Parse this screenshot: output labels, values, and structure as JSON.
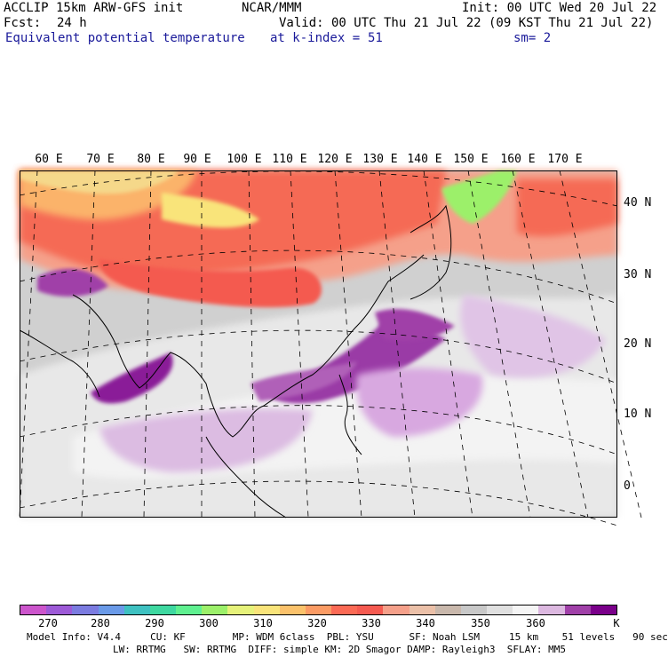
{
  "header": {
    "model": "ACCLIP 15km ARW-GFS init",
    "org": "NCAR/MMM",
    "init": "Init: 00 UTC Wed 20 Jul 22",
    "fcst_label": "Fcst:",
    "fcst_value": "24 h",
    "valid": "Valid: 00 UTC Thu 21 Jul 22 (09 KST Thu 21 Jul 22)",
    "field": "Equivalent potential temperature",
    "level": "at k-index =",
    "level_value": "51",
    "smooth": "sm= 2"
  },
  "map": {
    "lon_labels": [
      "60 E",
      "70 E",
      "80 E",
      "90 E",
      "100 E",
      "110 E",
      "120 E",
      "130 E",
      "140 E",
      "150 E",
      "160 E",
      "170 E"
    ],
    "lat_labels": [
      "40 N",
      "30 N",
      "20 N",
      "10 N",
      "0"
    ]
  },
  "colorbar": {
    "colors": [
      "#cc55cc",
      "#9d5ad7",
      "#7b7be0",
      "#6a9ae8",
      "#3ec1c1",
      "#3ed8a0",
      "#5ff090",
      "#9cf06a",
      "#e6f27a",
      "#f9e47a",
      "#fbc26b",
      "#fb9b64",
      "#fb6a55",
      "#f55a50",
      "#f5a08a",
      "#ebc0a8",
      "#c9b8ac",
      "#c8c8c8",
      "#e0e0e0",
      "#f5f5f5",
      "#dcb8e0",
      "#a040a8",
      "#7a008a"
    ],
    "ticks": [
      "270",
      "280",
      "290",
      "300",
      "310",
      "320",
      "330",
      "340",
      "350",
      "360"
    ],
    "unit": "K"
  },
  "footer": {
    "line1": "Model Info: V4.4     CU: KF        MP: WDM 6class  PBL: YSU      SF: Noah LSM     15 km    51 levels   90 sec",
    "line2": "LW: RRTMG   SW: RRTMG  DIFF: simple KM: 2D Smagor DAMP: Rayleigh3  SFLAY: MM5"
  }
}
